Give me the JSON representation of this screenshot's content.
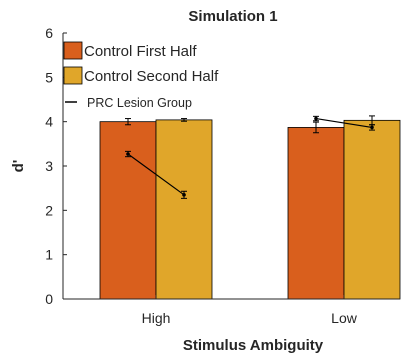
{
  "chart_data": {
    "type": "bar",
    "title": "Simulation 1",
    "xlabel": "Stimulus Ambiguity",
    "ylabel": "d'",
    "ylim": [
      0,
      6
    ],
    "yticks": [
      "0",
      "1",
      "2",
      "3",
      "4",
      "5",
      "6"
    ],
    "categories": [
      "High",
      "Low"
    ],
    "grid": false,
    "legend_position": "top-left",
    "series": [
      {
        "name": "Control First Half",
        "color": "#d95f1d",
        "values": [
          4.0,
          3.87
        ],
        "errors": [
          0.07,
          0.12
        ]
      },
      {
        "name": "Control Second Half",
        "color": "#e0a62a",
        "values": [
          4.04,
          4.03
        ],
        "errors": [
          0.03,
          0.1
        ]
      }
    ],
    "overlay_series": [
      {
        "name": "PRC Lesion Group",
        "type": "line",
        "color": "#000000",
        "values_first_half": [
          3.27,
          4.07
        ],
        "values_second_half": [
          2.35,
          3.87
        ],
        "errors_first_half": [
          0.06,
          0.05
        ],
        "errors_second_half": [
          0.08,
          0.06
        ]
      }
    ]
  }
}
